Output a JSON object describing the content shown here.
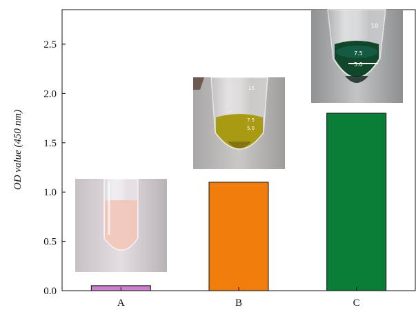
{
  "chart_data": {
    "type": "bar",
    "categories": [
      "A",
      "B",
      "C"
    ],
    "values": [
      0.05,
      1.1,
      1.8
    ],
    "colors": [
      "#cc7fcc",
      "#f07d0e",
      "#0a7d36"
    ],
    "ylabel": "OD value (450 nm)",
    "xlabel": "",
    "title": "",
    "ylim": [
      0,
      2.85
    ],
    "yticks": [
      "0.0",
      "0.5",
      "1.0",
      "1.5",
      "2.0",
      "2.5"
    ],
    "grid": false,
    "legend": "none",
    "insets": [
      {
        "category": "A",
        "subject": "centrifuge tube with pale pink liquid",
        "liquid_color": "#f2c3b4"
      },
      {
        "category": "B",
        "subject": "centrifuge tube with yellow-green liquid",
        "liquid_color": "#a89a12",
        "graduations": [
          "15",
          "7.5",
          "5.0"
        ]
      },
      {
        "category": "C",
        "subject": "centrifuge tube with dark green liquid",
        "liquid_color": "#10472b",
        "graduations": [
          "10",
          "7.5",
          "5.0"
        ]
      }
    ]
  }
}
